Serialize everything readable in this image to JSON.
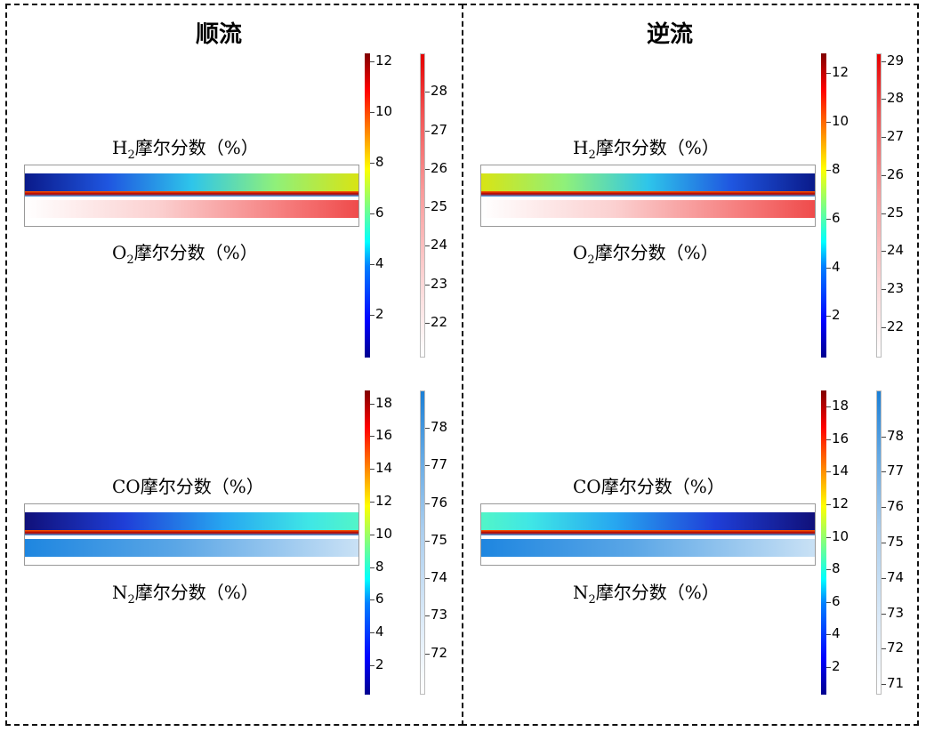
{
  "panels": [
    {
      "title": "顺流",
      "top": {
        "upper_label": {
          "main": "H",
          "sub": "2",
          "rest": "摩尔分数（%）"
        },
        "lower_label": {
          "main": "O",
          "sub": "2",
          "rest": "摩尔分数（%）"
        },
        "cbar_a": {
          "ticks": [
            2,
            4,
            6,
            8,
            10,
            12
          ],
          "min": 0.3,
          "max": 12.3,
          "colormap": "jet"
        },
        "cbar_b": {
          "ticks": [
            22,
            23,
            24,
            25,
            26,
            27,
            28
          ],
          "min": 21.1,
          "max": 29.0,
          "colormap": "reds"
        }
      },
      "bottom": {
        "upper_label": {
          "main": "CO",
          "sub": "",
          "rest": "摩尔分数（%）"
        },
        "lower_label": {
          "main": "N",
          "sub": "2",
          "rest": "摩尔分数（%）"
        },
        "cbar_a": {
          "ticks": [
            2,
            4,
            6,
            8,
            10,
            12,
            14,
            16,
            18
          ],
          "min": 0.2,
          "max": 18.8,
          "colormap": "jet"
        },
        "cbar_b": {
          "ticks": [
            72,
            73,
            74,
            75,
            76,
            77,
            78
          ],
          "min": 70.9,
          "max": 79.0,
          "colormap": "blues"
        }
      },
      "direction": "co"
    },
    {
      "title": "逆流",
      "top": {
        "upper_label": {
          "main": "H",
          "sub": "2",
          "rest": "摩尔分数（%）"
        },
        "lower_label": {
          "main": "O",
          "sub": "2",
          "rest": "摩尔分数（%）"
        },
        "cbar_a": {
          "ticks": [
            2,
            4,
            6,
            8,
            10,
            12
          ],
          "min": 0.3,
          "max": 12.8,
          "colormap": "jet"
        },
        "cbar_b": {
          "ticks": [
            22,
            23,
            24,
            25,
            26,
            27,
            28,
            29
          ],
          "min": 21.2,
          "max": 29.2,
          "colormap": "reds"
        }
      },
      "bottom": {
        "upper_label": {
          "main": "CO",
          "sub": "",
          "rest": "摩尔分数（%）"
        },
        "lower_label": {
          "main": "N",
          "sub": "2",
          "rest": "摩尔分数（%）"
        },
        "cbar_a": {
          "ticks": [
            2,
            4,
            6,
            8,
            10,
            12,
            14,
            16,
            18
          ],
          "min": 0.3,
          "max": 19.0,
          "colormap": "jet"
        },
        "cbar_b": {
          "ticks": [
            71,
            72,
            73,
            74,
            75,
            76,
            77,
            78
          ],
          "min": 70.7,
          "max": 79.3,
          "colormap": "blues"
        }
      },
      "direction": "counter"
    }
  ]
}
